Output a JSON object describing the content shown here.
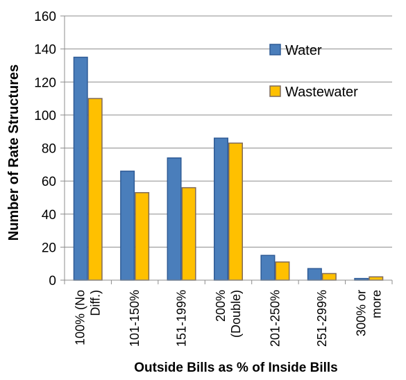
{
  "chart_data": {
    "type": "bar",
    "xlabel": "Outside Bills as % of Inside Bills",
    "ylabel": "Number of Rate Structures",
    "ylim": [
      0,
      160
    ],
    "yticks": [
      0,
      20,
      40,
      60,
      80,
      100,
      120,
      140,
      160
    ],
    "grid": true,
    "legend_position": "top-right",
    "categories": [
      [
        "100% (No",
        "Diff.)"
      ],
      [
        "101-150%"
      ],
      [
        "151-199%"
      ],
      [
        "200%",
        "(Double)"
      ],
      [
        "201-250%"
      ],
      [
        "251-299%"
      ],
      [
        "300% or",
        "more"
      ]
    ],
    "series": [
      {
        "name": "Water",
        "color": "#4a7ebb",
        "stroke": "#2f5b96",
        "values": [
          135,
          66,
          74,
          86,
          15,
          7,
          1
        ]
      },
      {
        "name": "Wastewater",
        "color": "#ffc000",
        "stroke": "#7f6a5a",
        "values": [
          110,
          53,
          56,
          83,
          11,
          4,
          2
        ]
      }
    ]
  }
}
